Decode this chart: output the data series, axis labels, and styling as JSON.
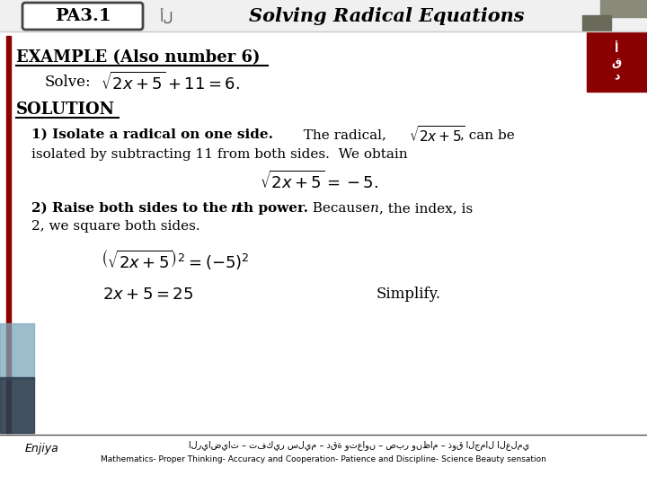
{
  "bg_color": "#ffffff",
  "title_text": "Solving Radical Equations",
  "pa_label": "PA3.1",
  "example_heading": "EXAMPLE (Also number 6)",
  "solve_label": "Solve:",
  "solution_heading": "SOLUTION",
  "simplify": "Simplify.",
  "footer_arabic": "الرياضيات – تفكير سليم – دقة وتعاون – صبر ونظام – ذوق الجمال العلمي",
  "footer_eng": "Mathematics- Proper Thinking- Accuracy and Cooperation- Patience and Discipline- Science Beauty sensation",
  "blue_rect1": "#7ba7bc",
  "blue_rect2": "#4a6fa5",
  "dark_rect": "#2d3e4f",
  "gray_top": "#8a8a7a",
  "gray_top2": "#6a6a5a",
  "red_accent": "#8B0000"
}
